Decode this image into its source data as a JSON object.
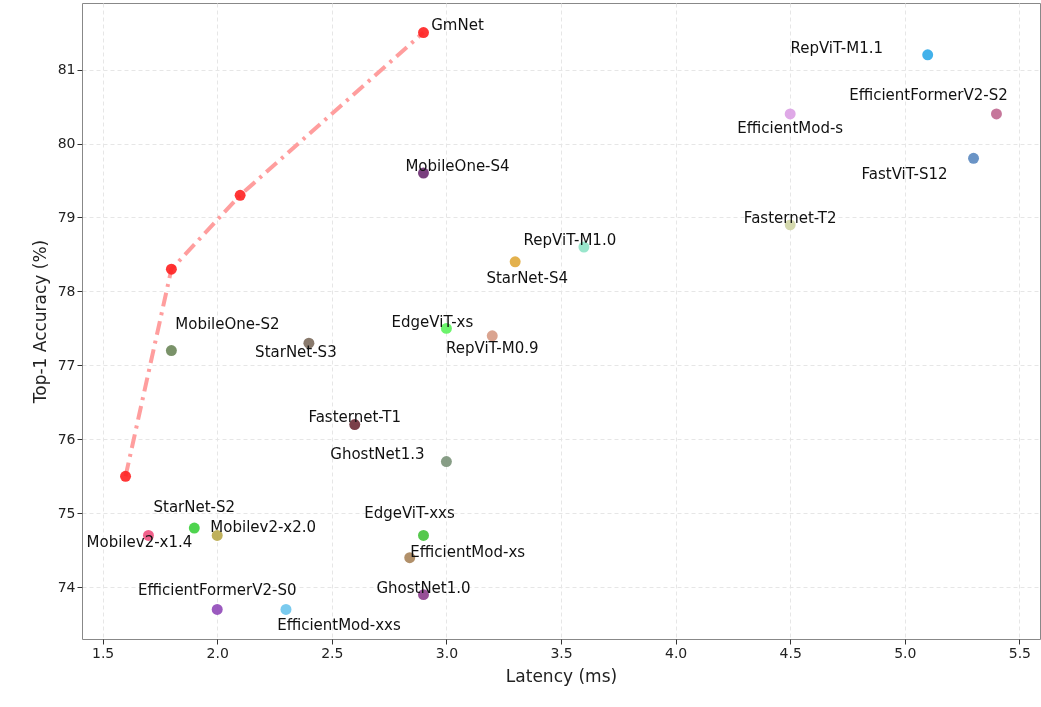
{
  "chart_data": {
    "type": "scatter",
    "xlabel": "Latency (ms)",
    "ylabel": "Top-1 Accuracy (%)",
    "xlim": [
      1.41,
      5.59
    ],
    "ylim": [
      73.3,
      81.9
    ],
    "xticks": [
      1.5,
      {
        "value": 2,
        "label": "2.0"
      },
      2.5,
      {
        "value": 3,
        "label": "3.0"
      },
      3.5,
      {
        "value": 4,
        "label": "4.0"
      },
      4.5,
      {
        "value": 5,
        "label": "5.0"
      },
      5.5
    ],
    "yticks": [
      74,
      75,
      76,
      77,
      78,
      79,
      80,
      81
    ],
    "grid": true,
    "marker": "circle",
    "series": [
      {
        "type": "line",
        "color": "#ff9e9e",
        "line_style": "dashed",
        "marker": "none",
        "x": [
          1.6,
          1.8,
          2.1,
          2.9
        ],
        "values": [
          75.5,
          78.3,
          79.3,
          81.5
        ]
      },
      {
        "name": "GmNet",
        "color": "#ff2020",
        "x": [
          1.6,
          1.8,
          2.1,
          2.9
        ],
        "values": [
          75.5,
          78.3,
          79.3,
          81.5
        ]
      },
      {
        "name": "MobileOne-S2",
        "color": "#6b8659",
        "x": [
          1.8
        ],
        "values": [
          77.2
        ]
      },
      {
        "name": "StarNet-S3",
        "color": "#7b6a5c",
        "x": [
          2.4
        ],
        "values": [
          77.3
        ]
      },
      {
        "name": "Fasternet-T1",
        "color": "#6b2a34",
        "x": [
          2.6
        ],
        "values": [
          76.2
        ]
      },
      {
        "name": "GhostNet1.3",
        "color": "#7a9279",
        "x": [
          3.0
        ],
        "values": [
          75.7
        ]
      },
      {
        "name": "MobileOne-S4",
        "color": "#6a2a70",
        "x": [
          2.9
        ],
        "values": [
          79.6
        ]
      },
      {
        "name": "RepViT-M1.0",
        "color": "#8ee3c6",
        "x": [
          3.6
        ],
        "values": [
          78.6
        ]
      },
      {
        "name": "StarNet-S4",
        "color": "#e0a93a",
        "x": [
          3.3
        ],
        "values": [
          78.4
        ]
      },
      {
        "name": "EdgeViT-xs",
        "color": "#5cf35c",
        "x": [
          3.0
        ],
        "values": [
          77.5
        ]
      },
      {
        "name": "RepViT-M0.9",
        "color": "#d69a84",
        "x": [
          3.2
        ],
        "values": [
          77.4
        ]
      },
      {
        "name": "StarNet-S2",
        "color": "#3ccf3c",
        "x": [
          1.9
        ],
        "values": [
          74.8
        ]
      },
      {
        "name": "Mobilev2-x1.4",
        "color": "#f0507e",
        "x": [
          1.7
        ],
        "values": [
          74.7
        ]
      },
      {
        "name": "Mobilev2-x2.0",
        "color": "#b8a84a",
        "x": [
          2.0
        ],
        "values": [
          74.7
        ]
      },
      {
        "name": "EdgeViT-xxs",
        "color": "#44c23a",
        "x": [
          2.9
        ],
        "values": [
          74.7
        ]
      },
      {
        "name": "EfficientMod-xs",
        "color": "#a8845a",
        "x": [
          2.84
        ],
        "values": [
          74.4
        ]
      },
      {
        "name": "GhostNet1.0",
        "color": "#8c3c8c",
        "x": [
          2.9
        ],
        "values": [
          73.9
        ]
      },
      {
        "name": "EfficientFormerV2-S0",
        "color": "#9048b8",
        "x": [
          2.0
        ],
        "values": [
          73.7
        ]
      },
      {
        "name": "EfficientMod-xxs",
        "color": "#6cc4ec",
        "x": [
          2.3
        ],
        "values": [
          73.7
        ]
      },
      {
        "name": "RepViT-M1.1",
        "color": "#2ea8e8",
        "x": [
          5.1
        ],
        "values": [
          81.2
        ]
      },
      {
        "name": "EfficientMod-s",
        "color": "#dca0e4",
        "x": [
          4.5
        ],
        "values": [
          80.4
        ]
      },
      {
        "name": "EfficientFormerV2-S2",
        "color": "#c06890",
        "x": [
          5.4
        ],
        "values": [
          80.4
        ]
      },
      {
        "name": "FastViT-S12",
        "color": "#5a88c0",
        "x": [
          5.3
        ],
        "values": [
          79.8
        ]
      },
      {
        "name": "Fasternet-T2",
        "color": "#cfd4a4",
        "x": [
          4.5
        ],
        "values": [
          78.9
        ]
      }
    ]
  }
}
